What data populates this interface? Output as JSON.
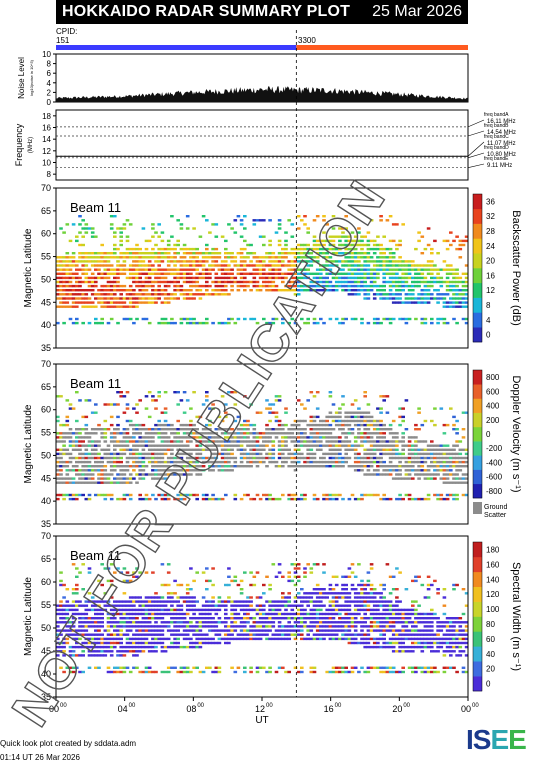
{
  "header": {
    "title": "HOKKAIDO RADAR SUMMARY PLOT",
    "date": "25 Mar 2026"
  },
  "cpid": {
    "label": "CPID:",
    "first": "151",
    "second": "3300"
  },
  "colors": {
    "cpid_first": "#3b3bff",
    "cpid_second": "#ff5a1f",
    "ground_scatter": "#8c8c8c"
  },
  "noise_panel": {
    "ylabel": "Noise Level",
    "ylabel_sub": "log10(noise in 10^3)",
    "ticks": [
      "0",
      "2",
      "4",
      "6",
      "8",
      "10"
    ]
  },
  "freq_panel": {
    "ylabel": "Frequency",
    "ylabel_unit": "(MHz)",
    "ticks": [
      "8",
      "10",
      "12",
      "14",
      "16",
      "18"
    ],
    "bands": [
      {
        "name": "freq bandA",
        "value": "16.11 MHz"
      },
      {
        "name": "freq bandB",
        "value": "14.54 MHz"
      },
      {
        "name": "freq bandC",
        "value": "11.07 MHz"
      },
      {
        "name": "freq bandD",
        "value": "10.80 MHz"
      },
      {
        "name": "freq bandE",
        "value": "9.11 MHz"
      }
    ]
  },
  "panels": [
    {
      "beam": "Beam 11",
      "ylabel": "Magnetic Latitude",
      "cbar_label": "Backscatter Power (dB)",
      "cbar_ticks": [
        "0",
        "4",
        "8",
        "12",
        "16",
        "20",
        "24",
        "28",
        "32",
        "36"
      ]
    },
    {
      "beam": "Beam 11",
      "ylabel": "Magnetic Latitude",
      "cbar_label": "Doppler Velocity (m s⁻¹)",
      "cbar_ticks": [
        "-800",
        "-600",
        "-400",
        "-200",
        "0",
        "200",
        "400",
        "600",
        "800"
      ],
      "ground_label": "Ground",
      "ground_label2": "Scatter"
    },
    {
      "beam": "Beam 11",
      "ylabel": "Magnetic Latitude",
      "cbar_label": "Spectral Width (m s⁻¹)",
      "cbar_ticks": [
        "0",
        "20",
        "40",
        "60",
        "80",
        "100",
        "120",
        "140",
        "160",
        "180"
      ]
    }
  ],
  "lat_ticks": [
    "35",
    "40",
    "45",
    "50",
    "55",
    "60",
    "65",
    "70"
  ],
  "x_axis": {
    "label": "UT",
    "ticks": [
      "00",
      "04",
      "08",
      "12",
      "16",
      "20",
      "00"
    ],
    "sup": "00"
  },
  "watermark": "NOT FOR PUBLICATION",
  "footer": {
    "credit": "Quick look plot created by sddata.adm",
    "time": "01:14 UT 26 Mar 2026"
  },
  "logo": {
    "l1": "I",
    "l2": "S",
    "l3": "E",
    "l4": "E"
  },
  "chart_data": {
    "type": "heatmap",
    "title": "HOKKAIDO RADAR SUMMARY PLOT",
    "xlabel": "UT",
    "xlim": [
      0,
      24
    ],
    "time_marker_ut": 14.0,
    "cpid_segments": [
      {
        "cpid": "151",
        "start_ut": 0,
        "end_ut": 14.0
      },
      {
        "cpid": "3300",
        "start_ut": 14.0,
        "end_ut": 24
      }
    ],
    "noise": {
      "ylim": [
        0,
        10
      ],
      "mean_level_by_ut": [
        [
          0,
          0.8
        ],
        [
          4,
          1.2
        ],
        [
          8,
          2.0
        ],
        [
          12,
          2.6
        ],
        [
          16,
          2.4
        ],
        [
          20,
          1.6
        ],
        [
          24,
          0.7
        ]
      ]
    },
    "frequency": {
      "ylim": [
        7,
        19
      ],
      "dashed_bands_mhz": [
        16.11,
        14.54,
        11.07,
        10.8,
        9.11
      ]
    },
    "latitude_panels": {
      "ylim": [
        35,
        70
      ],
      "scatter_bands": [
        {
          "ut": 0,
          "lat_lo": 44,
          "lat_hi": 54
        },
        {
          "ut": 4,
          "lat_lo": 44,
          "lat_hi": 55
        },
        {
          "ut": 8,
          "lat_lo": 46,
          "lat_hi": 55
        },
        {
          "ut": 12,
          "lat_lo": 48,
          "lat_hi": 54
        },
        {
          "ut": 14,
          "lat_lo": 47,
          "lat_hi": 56
        },
        {
          "ut": 16,
          "lat_lo": 48,
          "lat_hi": 58
        },
        {
          "ut": 18,
          "lat_lo": 46,
          "lat_hi": 58
        },
        {
          "ut": 20,
          "lat_lo": 45,
          "lat_hi": 53
        },
        {
          "ut": 24,
          "lat_lo": 44,
          "lat_hi": 50
        }
      ],
      "low_latitude_band": {
        "lat": 40,
        "ut_range": [
          0,
          24
        ]
      },
      "power": {
        "clim": [
          0,
          36
        ],
        "unit": "dB"
      },
      "velocity": {
        "clim": [
          -800,
          800
        ],
        "unit": "m/s"
      },
      "width": {
        "clim": [
          0,
          180
        ],
        "unit": "m/s"
      }
    }
  }
}
